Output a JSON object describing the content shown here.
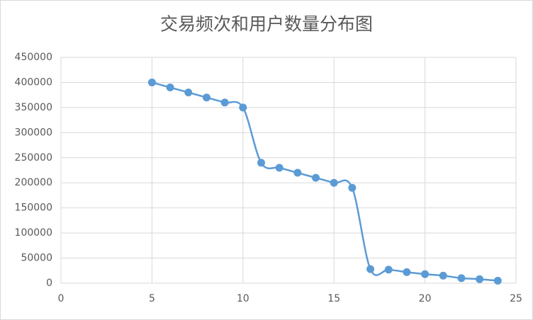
{
  "chart_data": {
    "type": "scatter_smooth",
    "title": "交易频次和用户数量分布图",
    "series": [
      {
        "color": "#5b9bd5",
        "x": [
          5,
          6,
          7,
          8,
          9,
          10,
          11,
          12,
          13,
          14,
          15,
          16,
          17,
          18,
          19,
          20,
          21,
          22,
          23,
          24
        ],
        "values": [
          400000,
          390000,
          380000,
          370000,
          360000,
          350000,
          240000,
          230000,
          220000,
          210000,
          200000,
          190000,
          28000,
          27000,
          22000,
          18000,
          15000,
          10000,
          8000,
          5000
        ]
      }
    ],
    "xlim": [
      0,
      25
    ],
    "xticks": [
      0,
      5,
      10,
      15,
      20,
      25
    ],
    "ylim": [
      0,
      450000
    ],
    "yticks": [
      0,
      50000,
      100000,
      150000,
      200000,
      250000,
      300000,
      350000,
      400000,
      450000
    ],
    "grid": true
  }
}
